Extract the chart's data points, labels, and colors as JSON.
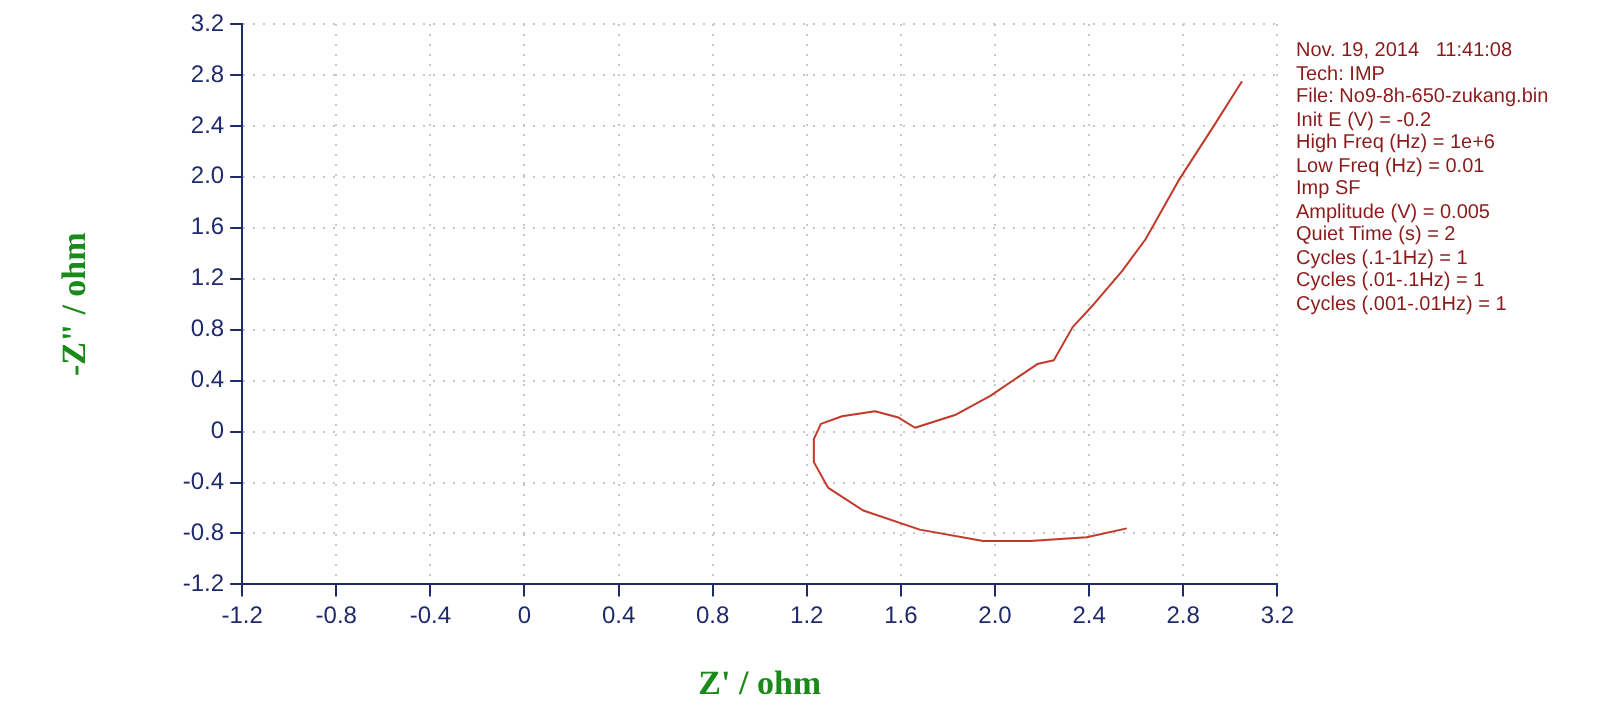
{
  "chart_data": {
    "type": "line",
    "xlabel": "Z' / ohm",
    "ylabel": "-Z\" / ohm",
    "annotations": [
      "Nov. 19, 2014   11:41:08",
      "Tech: IMP",
      "File: No9-8h-650-zukang.bin",
      "Init E (V) = -0.2",
      "High Freq (Hz) = 1e+6",
      "Low Freq (Hz) = 0.01",
      "Imp SF",
      "Amplitude (V) = 0.005",
      "Quiet Time (s) = 2",
      "Cycles (.1-1Hz) = 1",
      "Cycles (.01-.1Hz) = 1",
      "Cycles (.001-.01Hz) = 1"
    ],
    "series": [
      {
        "color": "#c0392b",
        "x": [
          2.56,
          2.39,
          2.15,
          1.95,
          1.68,
          1.44,
          1.29,
          1.23,
          1.23,
          1.26,
          1.35,
          1.49,
          1.59,
          1.66,
          1.83,
          1.98,
          2.18,
          2.25,
          2.33,
          2.42,
          2.54,
          2.64,
          2.78,
          2.93,
          3.05
        ],
        "values": [
          -0.76,
          -0.83,
          -0.86,
          -0.86,
          -0.77,
          -0.62,
          -0.44,
          -0.24,
          -0.06,
          0.06,
          0.12,
          0.16,
          0.11,
          0.03,
          0.13,
          0.28,
          0.53,
          0.56,
          0.82,
          1.0,
          1.26,
          1.51,
          1.97,
          2.4,
          2.75
        ]
      }
    ],
    "xlim": [
      -1.2,
      3.2
    ],
    "xticks": [
      -1.2,
      -0.8,
      -0.4,
      0,
      0.4,
      0.8,
      1.2,
      1.6,
      {
        "value": 2,
        "label": "2.0"
      },
      2.4,
      2.8,
      3.2
    ],
    "ylim": [
      -1.2,
      3.2
    ],
    "yticks": [
      -1.2,
      -0.8,
      -0.4,
      0,
      0.4,
      0.8,
      1.2,
      1.6,
      {
        "value": 2,
        "label": "2.0"
      },
      2.4,
      2.8,
      3.2
    ],
    "grid": true,
    "legend": false,
    "marker": "none",
    "line_style": "solid"
  }
}
